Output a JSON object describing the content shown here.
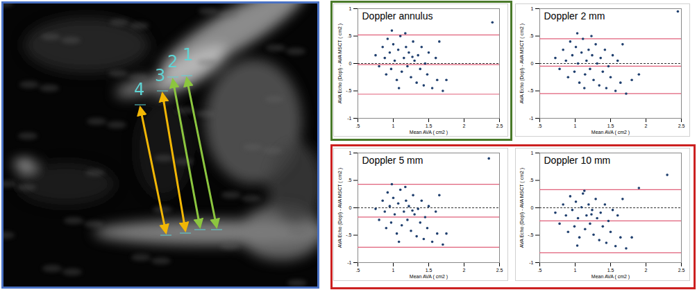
{
  "image_panel": {
    "labels": [
      "1",
      "2",
      "3",
      "4"
    ]
  },
  "chart_data": [
    {
      "type": "scatter",
      "title": "Doppler annulus",
      "x_label": "Mean AVA ( cm2 )",
      "y_label": "AVA Echo (Dopl) - AVA MSCT ( cm2 )",
      "x": [
        0.75,
        0.8,
        0.85,
        0.88,
        0.9,
        0.92,
        0.95,
        0.97,
        1.0,
        1.02,
        1.05,
        1.07,
        1.1,
        1.12,
        1.15,
        1.18,
        1.2,
        1.22,
        1.25,
        1.28,
        1.3,
        1.33,
        1.35,
        1.38,
        1.4,
        1.43,
        1.45,
        1.48,
        1.5,
        1.55,
        1.6,
        1.62,
        1.65,
        1.7,
        1.75,
        0.98,
        1.08,
        1.17,
        1.27,
        2.4
      ],
      "values": [
        0.15,
        -0.05,
        0.3,
        0.1,
        -0.2,
        0.45,
        0.2,
        -0.1,
        0.35,
        0.05,
        -0.3,
        0.25,
        0.5,
        -0.15,
        0.1,
        0.3,
        -0.05,
        0.2,
        -0.25,
        0.4,
        0.05,
        -0.35,
        0.15,
        -0.1,
        0.3,
        -0.4,
        0.0,
        -0.2,
        0.2,
        -0.45,
        0.1,
        -0.3,
        0.4,
        -0.5,
        -0.3,
        0.6,
        -0.45,
        0.55,
        0.12,
        0.75
      ],
      "limits_of_agreement": [
        0.52,
        -0.02,
        -0.56
      ],
      "reference_line": 0,
      "color": "#1f3f6e",
      "grid": false,
      "xlim": [
        0.5,
        2.5
      ],
      "xticks": [
        {
          "value": 0.5,
          "label": ".5"
        },
        1,
        1.5,
        2,
        2.5
      ],
      "ylim": [
        -1,
        1
      ],
      "yticks": [
        -1,
        {
          "value": -0.5,
          "label": "-.5"
        },
        0,
        {
          "value": 0.5,
          "label": ".5"
        },
        1
      ]
    },
    {
      "type": "scatter",
      "title": "Doppler 2 mm",
      "x_label": "Mean AVA ( cm2 )",
      "y_label": "AVA Echo (Dopl) - AVA MSCT ( cm2 )",
      "x": [
        0.72,
        0.78,
        0.83,
        0.87,
        0.9,
        0.93,
        0.96,
        0.99,
        1.01,
        1.04,
        1.06,
        1.09,
        1.11,
        1.14,
        1.16,
        1.19,
        1.21,
        1.24,
        1.26,
        1.29,
        1.31,
        1.34,
        1.36,
        1.39,
        1.42,
        1.44,
        1.47,
        1.5,
        1.53,
        1.57,
        1.6,
        1.64,
        1.67,
        1.72,
        1.8,
        1.9,
        1.03,
        1.13,
        1.23,
        2.45
      ],
      "values": [
        0.1,
        -0.1,
        0.25,
        0.05,
        -0.25,
        0.4,
        0.15,
        -0.15,
        0.3,
        0.0,
        -0.35,
        0.2,
        0.45,
        -0.2,
        0.05,
        0.25,
        -0.1,
        0.15,
        -0.3,
        0.35,
        0.0,
        -0.4,
        0.1,
        -0.15,
        0.25,
        -0.45,
        -0.05,
        -0.25,
        0.15,
        -0.5,
        0.05,
        -0.35,
        0.35,
        -0.55,
        -0.3,
        -0.2,
        0.55,
        -0.45,
        0.5,
        0.95
      ],
      "limits_of_agreement": [
        0.45,
        -0.05,
        -0.55
      ],
      "reference_line": 0,
      "color": "#1f3f6e",
      "grid": false,
      "xlim": [
        0.5,
        2.5
      ],
      "xticks": [
        {
          "value": 0.5,
          "label": ".5"
        },
        1,
        1.5,
        2,
        2.5
      ],
      "ylim": [
        -1,
        1
      ],
      "yticks": [
        -1,
        {
          "value": -0.5,
          "label": "-.5"
        },
        0,
        {
          "value": 0.5,
          "label": ".5"
        },
        1
      ]
    },
    {
      "type": "scatter",
      "title": "Doppler 5 mm",
      "x_label": "Mean AVA ( cm2 )",
      "y_label": "AVA Echo (Dopl) - AVA MSCT ( cm2 )",
      "x": [
        0.75,
        0.8,
        0.85,
        0.88,
        0.9,
        0.92,
        0.95,
        0.97,
        1.0,
        1.02,
        1.05,
        1.07,
        1.1,
        1.12,
        1.15,
        1.18,
        1.2,
        1.22,
        1.25,
        1.28,
        1.3,
        1.33,
        1.35,
        1.38,
        1.4,
        1.43,
        1.45,
        1.48,
        1.5,
        1.55,
        1.6,
        1.62,
        1.65,
        1.7,
        1.75,
        0.98,
        1.08,
        1.17,
        1.27,
        2.35
      ],
      "values": [
        -0.02,
        -0.22,
        0.13,
        -0.07,
        -0.37,
        0.28,
        0.03,
        -0.27,
        0.18,
        -0.12,
        -0.47,
        0.08,
        0.33,
        -0.32,
        -0.07,
        0.13,
        -0.22,
        0.03,
        -0.42,
        0.23,
        -0.12,
        -0.52,
        -0.02,
        -0.27,
        0.13,
        -0.57,
        -0.17,
        -0.37,
        0.03,
        -0.62,
        -0.07,
        -0.47,
        0.23,
        -0.67,
        -0.47,
        0.43,
        -0.62,
        0.38,
        -0.05,
        0.9
      ],
      "limits_of_agreement": [
        0.43,
        -0.17,
        -0.72
      ],
      "reference_line": 0,
      "color": "#1f3f6e",
      "grid": false,
      "xlim": [
        0.5,
        2.5
      ],
      "xticks": [
        {
          "value": 0.5,
          "label": ".5"
        },
        1,
        1.5,
        2,
        2.5
      ],
      "ylim": [
        -1,
        1
      ],
      "yticks": [
        -1,
        {
          "value": -0.5,
          "label": "-.5"
        },
        0,
        {
          "value": 0.5,
          "label": ".5"
        },
        1
      ]
    },
    {
      "type": "scatter",
      "title": "Doppler 10 mm",
      "x_label": "Mean AVA ( cm2 )",
      "y_label": "AVA Echo (Dopl) - AVA MSCT ( cm2 )",
      "x": [
        0.72,
        0.78,
        0.83,
        0.87,
        0.9,
        0.93,
        0.96,
        0.99,
        1.01,
        1.04,
        1.06,
        1.09,
        1.11,
        1.14,
        1.16,
        1.19,
        1.21,
        1.24,
        1.26,
        1.29,
        1.31,
        1.34,
        1.36,
        1.39,
        1.42,
        1.44,
        1.47,
        1.5,
        1.53,
        1.57,
        1.6,
        1.64,
        1.67,
        1.72,
        1.8,
        1.9,
        1.03,
        1.13,
        1.23,
        2.3
      ],
      "values": [
        -0.09,
        -0.29,
        0.06,
        -0.14,
        -0.44,
        0.21,
        -0.04,
        -0.34,
        0.11,
        -0.19,
        -0.54,
        0.01,
        0.26,
        -0.39,
        -0.14,
        0.06,
        -0.29,
        -0.04,
        -0.49,
        0.16,
        -0.19,
        -0.59,
        -0.09,
        -0.34,
        0.06,
        -0.64,
        -0.24,
        -0.44,
        -0.04,
        -0.7,
        -0.14,
        -0.54,
        0.16,
        -0.74,
        -0.54,
        0.36,
        -0.69,
        0.31,
        -0.12,
        0.6
      ],
      "limits_of_agreement": [
        0.33,
        -0.24,
        -0.82
      ],
      "reference_line": 0,
      "color": "#1f3f6e",
      "grid": false,
      "xlim": [
        0.5,
        2.5
      ],
      "xticks": [
        {
          "value": 0.5,
          "label": ".5"
        },
        1,
        1.5,
        2,
        2.5
      ],
      "ylim": [
        -1,
        1
      ],
      "yticks": [
        -1,
        {
          "value": -0.5,
          "label": "-.5"
        },
        0,
        {
          "value": 0.5,
          "label": ".5"
        },
        1
      ]
    }
  ]
}
